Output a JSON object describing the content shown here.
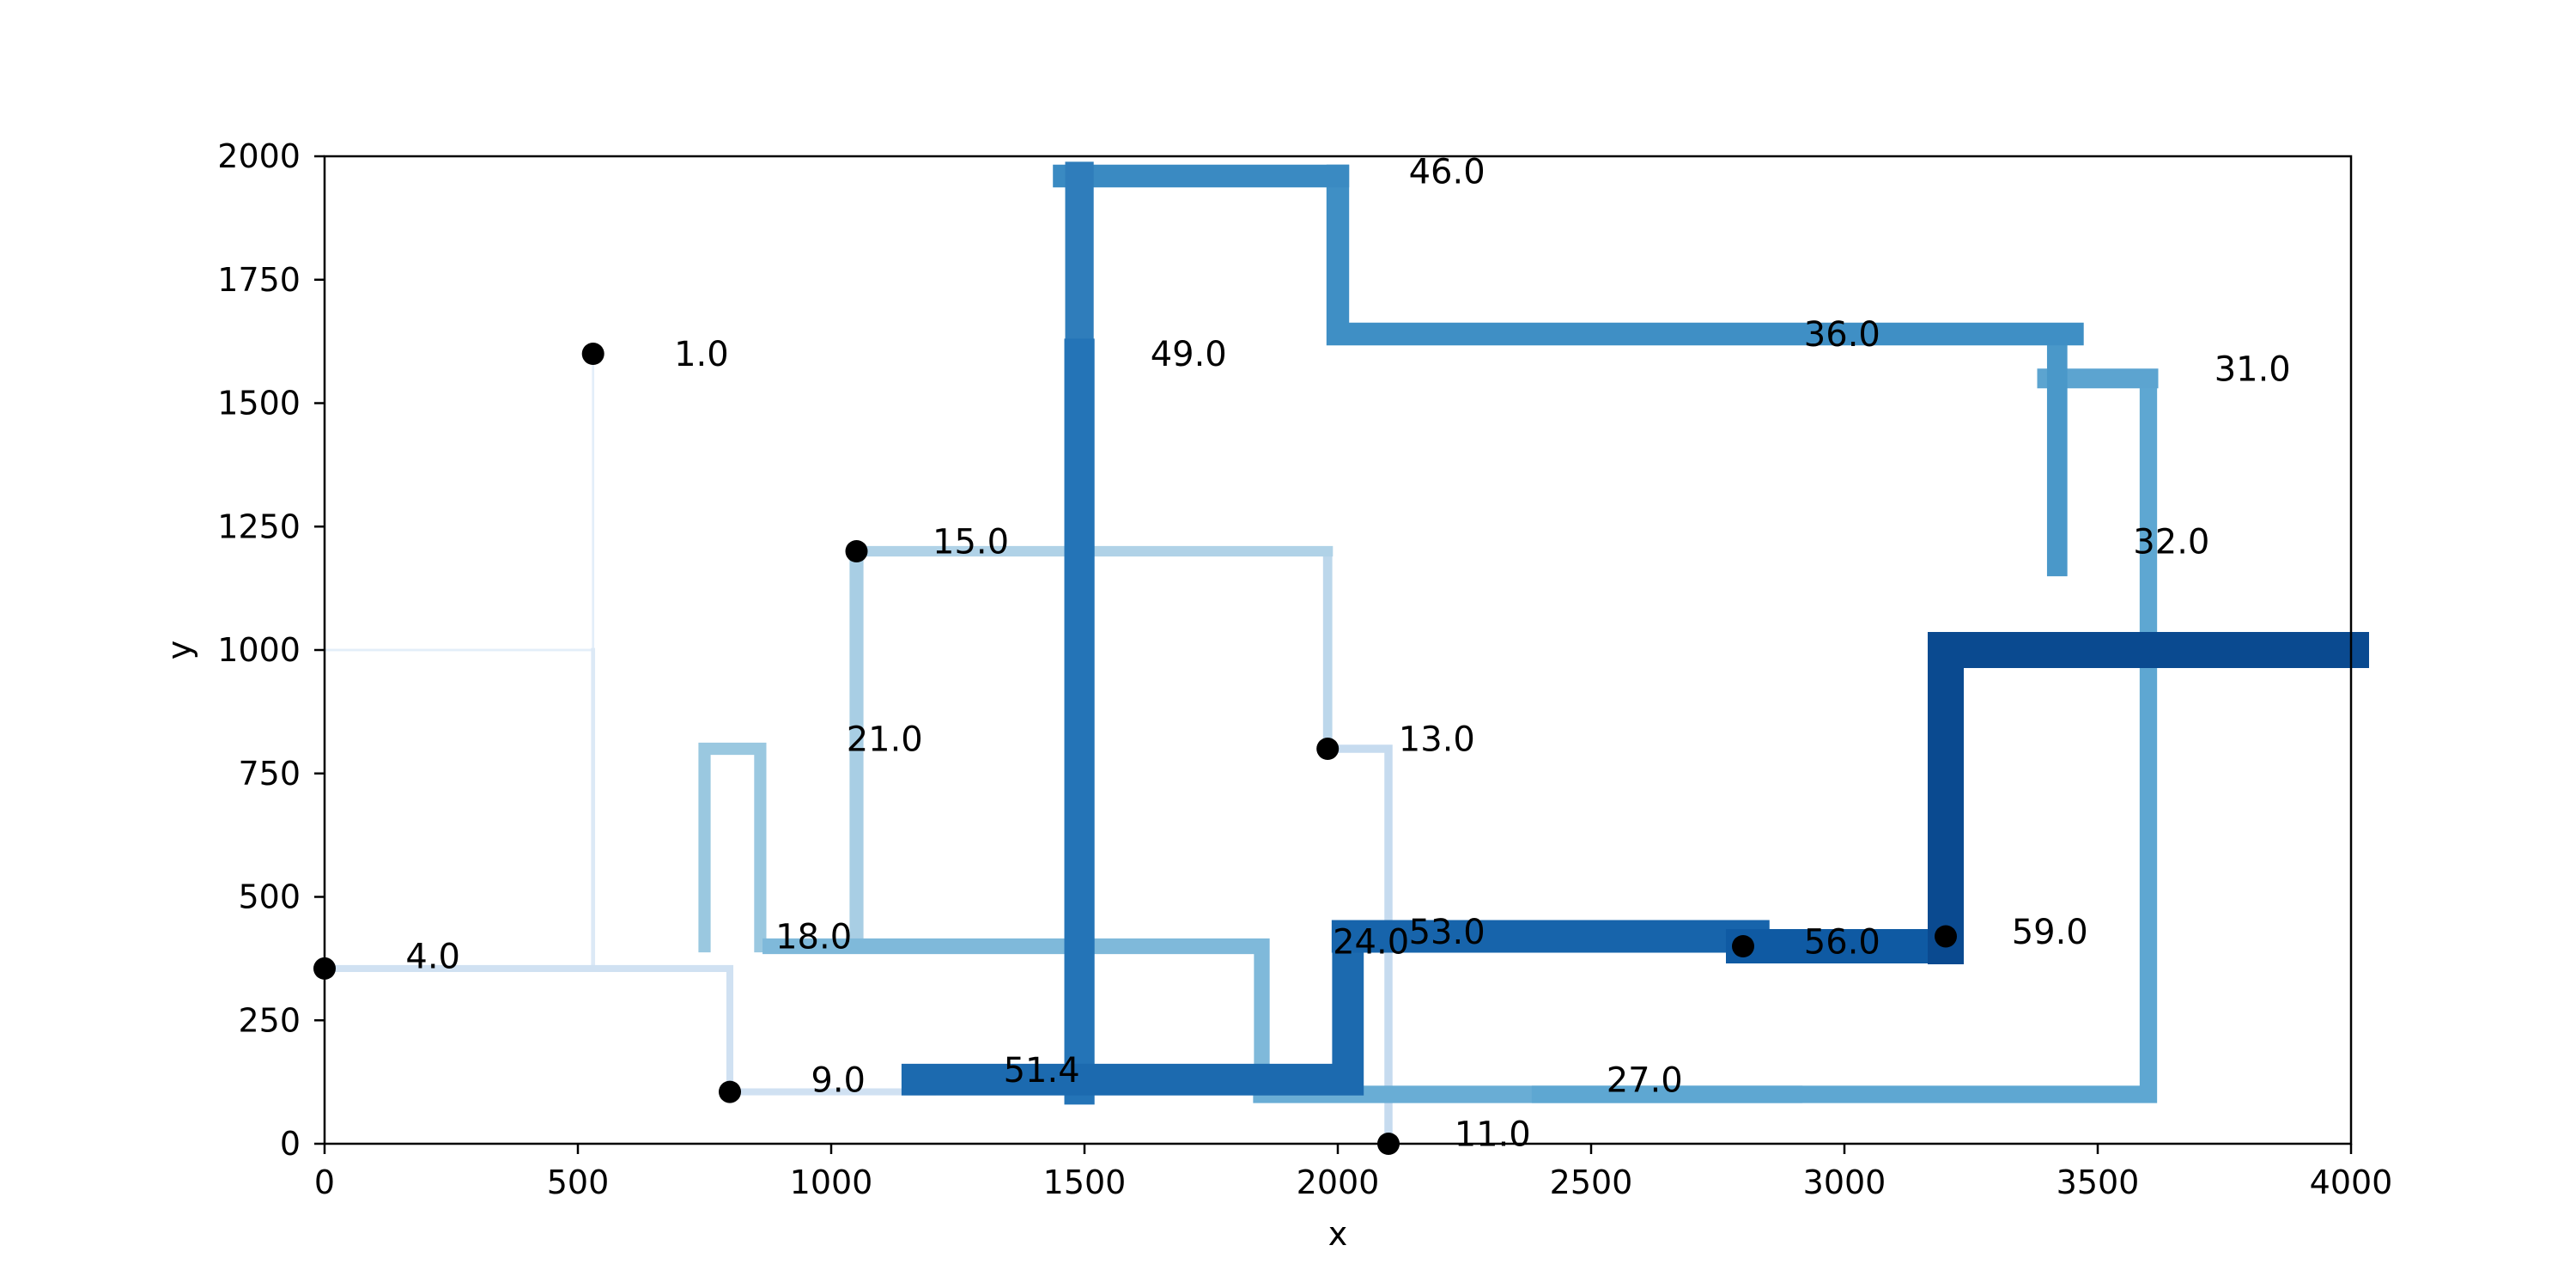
{
  "chart_data": {
    "type": "line",
    "title": "",
    "xlabel": "x",
    "ylabel": "y",
    "xlim": [
      0,
      4000
    ],
    "ylim": [
      0,
      2000
    ],
    "xticks": [
      "0",
      "500",
      "1000",
      "1500",
      "2000",
      "2500",
      "3000",
      "3500",
      "4000"
    ],
    "yticks": [
      "0",
      "250",
      "500",
      "750",
      "1000",
      "1250",
      "1500",
      "1750",
      "2000"
    ],
    "grid": false,
    "colormap": "Blues",
    "series": [
      {
        "value": 1.0,
        "color": "#e3eef9",
        "points": [
          [
            530,
            1600
          ],
          [
            530,
            1000
          ],
          [
            0,
            1000
          ]
        ]
      },
      {
        "value": 4.0,
        "color": "#dce9f6",
        "points": [
          [
            530,
            1000
          ],
          [
            530,
            355
          ],
          [
            0,
            355
          ]
        ]
      },
      {
        "value": 9.0,
        "color": "#d0e1f2",
        "points": [
          [
            0,
            355
          ],
          [
            800,
            355
          ],
          [
            800,
            105
          ],
          [
            1200,
            105
          ]
        ]
      },
      {
        "value": 11.0,
        "color": "#c6dbef",
        "points": [
          [
            2100,
            0
          ],
          [
            2100,
            800
          ],
          [
            1980,
            800
          ]
        ]
      },
      {
        "value": 13.0,
        "color": "#bcd7eb",
        "points": [
          [
            1980,
            800
          ],
          [
            1980,
            1200
          ],
          [
            1980,
            1200
          ]
        ]
      },
      {
        "value": 15.0,
        "color": "#b0d2e7",
        "points": [
          [
            1980,
            1200
          ],
          [
            1050,
            1200
          ],
          [
            1050,
            1200
          ]
        ]
      },
      {
        "value": 18.0,
        "color": "#9ac8e0",
        "points": [
          [
            750,
            400
          ],
          [
            750,
            800
          ],
          [
            860,
            800
          ],
          [
            860,
            400
          ],
          [
            1180,
            400
          ]
        ]
      },
      {
        "value": 21.0,
        "color": "#a8cee4",
        "points": [
          [
            1050,
            1200
          ],
          [
            1050,
            400
          ],
          [
            1180,
            400
          ]
        ]
      },
      {
        "value": 24.0,
        "color": "#7fb9da",
        "points": [
          [
            880,
            400
          ],
          [
            1850,
            400
          ],
          [
            1850,
            100
          ]
        ]
      },
      {
        "value": 27.0,
        "color": "#69add5",
        "points": [
          [
            1850,
            100
          ],
          [
            2900,
            100
          ]
        ]
      },
      {
        "value": 27.0,
        "color": "#5ea7d2",
        "points": [
          [
            2400,
            100
          ],
          [
            3600,
            100
          ],
          [
            3600,
            1550
          ]
        ]
      },
      {
        "value": 31.0,
        "color": "#5ca4d0",
        "points": [
          [
            3600,
            1550
          ],
          [
            3400,
            1550
          ]
        ]
      },
      {
        "value": 32.0,
        "color": "#4a98c9",
        "points": [
          [
            3420,
            1170
          ],
          [
            3420,
            1640
          ]
        ]
      },
      {
        "value": 36.0,
        "color": "#3f8fc5",
        "points": [
          [
            3450,
            1640
          ],
          [
            2000,
            1640
          ],
          [
            2000,
            1960
          ]
        ]
      },
      {
        "value": 36.0,
        "color": "#3a8ac2",
        "points": [
          [
            2000,
            1960
          ],
          [
            1460,
            1960
          ]
        ]
      },
      {
        "value": 46.0,
        "color": "#2f7dbb",
        "points": [
          [
            1490,
            1960
          ],
          [
            1490,
            1600
          ]
        ]
      },
      {
        "value": 49.0,
        "color": "#2474b7",
        "points": [
          [
            1490,
            1600
          ],
          [
            1490,
            110
          ]
        ]
      },
      {
        "value": 51.4,
        "color": "#1c6aaf",
        "points": [
          [
            1170,
            130
          ],
          [
            2020,
            130
          ],
          [
            2020,
            420
          ],
          [
            2800,
            420
          ]
        ]
      },
      {
        "value": 53.0,
        "color": "#1764ab",
        "points": [
          [
            2020,
            420
          ],
          [
            2820,
            420
          ]
        ]
      },
      {
        "value": 56.0,
        "color": "#0f5aa3",
        "points": [
          [
            2800,
            400
          ],
          [
            3200,
            400
          ]
        ]
      },
      {
        "value": 59.0,
        "color": "#0a4a90",
        "points": [
          [
            3200,
            400
          ],
          [
            3200,
            1000
          ],
          [
            4000,
            1000
          ]
        ]
      }
    ],
    "markers": [
      {
        "x": 530,
        "y": 1600
      },
      {
        "x": 0,
        "y": 355
      },
      {
        "x": 800,
        "y": 105
      },
      {
        "x": 2100,
        "y": 0
      },
      {
        "x": 1980,
        "y": 800
      },
      {
        "x": 1050,
        "y": 1200
      },
      {
        "x": 2800,
        "y": 400
      },
      {
        "x": 3200,
        "y": 420
      }
    ],
    "data_labels": [
      {
        "text": "1.0",
        "x": 690,
        "y": 1600
      },
      {
        "text": "4.0",
        "x": 160,
        "y": 380
      },
      {
        "text": "9.0",
        "x": 960,
        "y": 130
      },
      {
        "text": "11.0",
        "x": 2230,
        "y": 20
      },
      {
        "text": "13.0",
        "x": 2120,
        "y": 820
      },
      {
        "text": "15.0",
        "x": 1200,
        "y": 1220
      },
      {
        "text": "18.0",
        "x": 890,
        "y": 420
      },
      {
        "text": "21.0",
        "x": 1030,
        "y": 820
      },
      {
        "text": "24.0",
        "x": 1990,
        "y": 410
      },
      {
        "text": "27.0",
        "x": 2530,
        "y": 130
      },
      {
        "text": "31.0",
        "x": 3730,
        "y": 1570
      },
      {
        "text": "32.0",
        "x": 3570,
        "y": 1220
      },
      {
        "text": "36.0",
        "x": 2920,
        "y": 1640
      },
      {
        "text": "46.0",
        "x": 2140,
        "y": 1970
      },
      {
        "text": "49.0",
        "x": 1630,
        "y": 1600
      },
      {
        "text": "51.4",
        "x": 1340,
        "y": 150
      },
      {
        "text": "53.0",
        "x": 2140,
        "y": 430
      },
      {
        "text": "56.0",
        "x": 2920,
        "y": 410
      },
      {
        "text": "59.0",
        "x": 3330,
        "y": 430
      }
    ]
  }
}
